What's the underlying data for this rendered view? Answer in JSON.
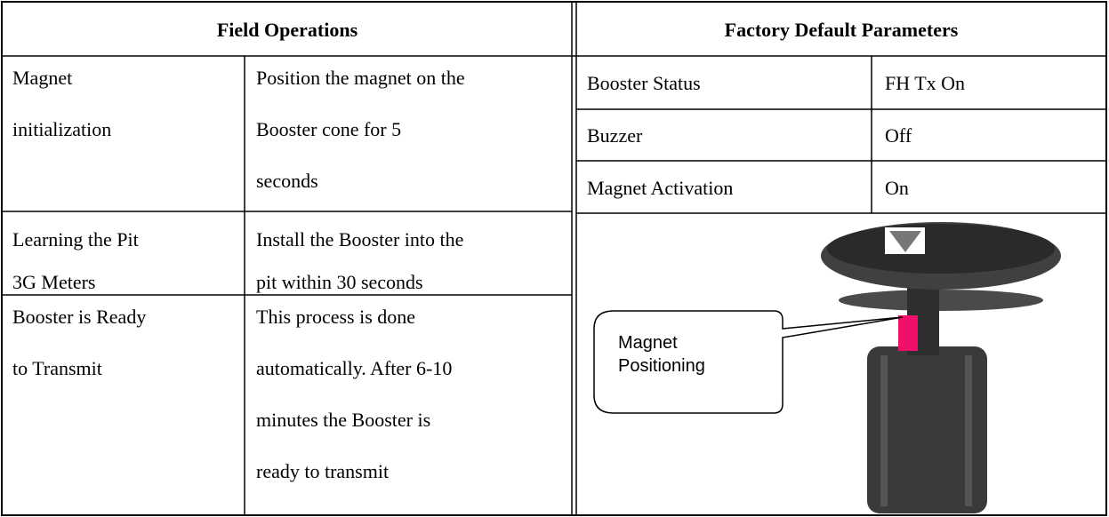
{
  "header": {
    "left": "Field Operations",
    "right": "Factory Default Parameters"
  },
  "operations": [
    {
      "name": [
        "Magnet",
        "initialization"
      ],
      "description": [
        "Position the magnet on the",
        "Booster cone for 5",
        "seconds"
      ]
    },
    {
      "name": [
        "Learning the Pit",
        "3G Meters"
      ],
      "description": [
        "Install the Booster into the",
        "pit within 30 seconds"
      ]
    },
    {
      "name": [
        "Booster is Ready",
        "to Transmit"
      ],
      "description": [
        "This process is done",
        "automatically. After 6-10",
        "minutes the Booster is",
        "ready to transmit"
      ]
    }
  ],
  "defaults": [
    {
      "parameter": "Booster Status",
      "value": "FH Tx On"
    },
    {
      "parameter": "Buzzer",
      "value": "Off"
    },
    {
      "parameter": "Magnet Activation",
      "value": "On"
    }
  ],
  "figure": {
    "callout": [
      "Magnet",
      "Positioning"
    ]
  }
}
